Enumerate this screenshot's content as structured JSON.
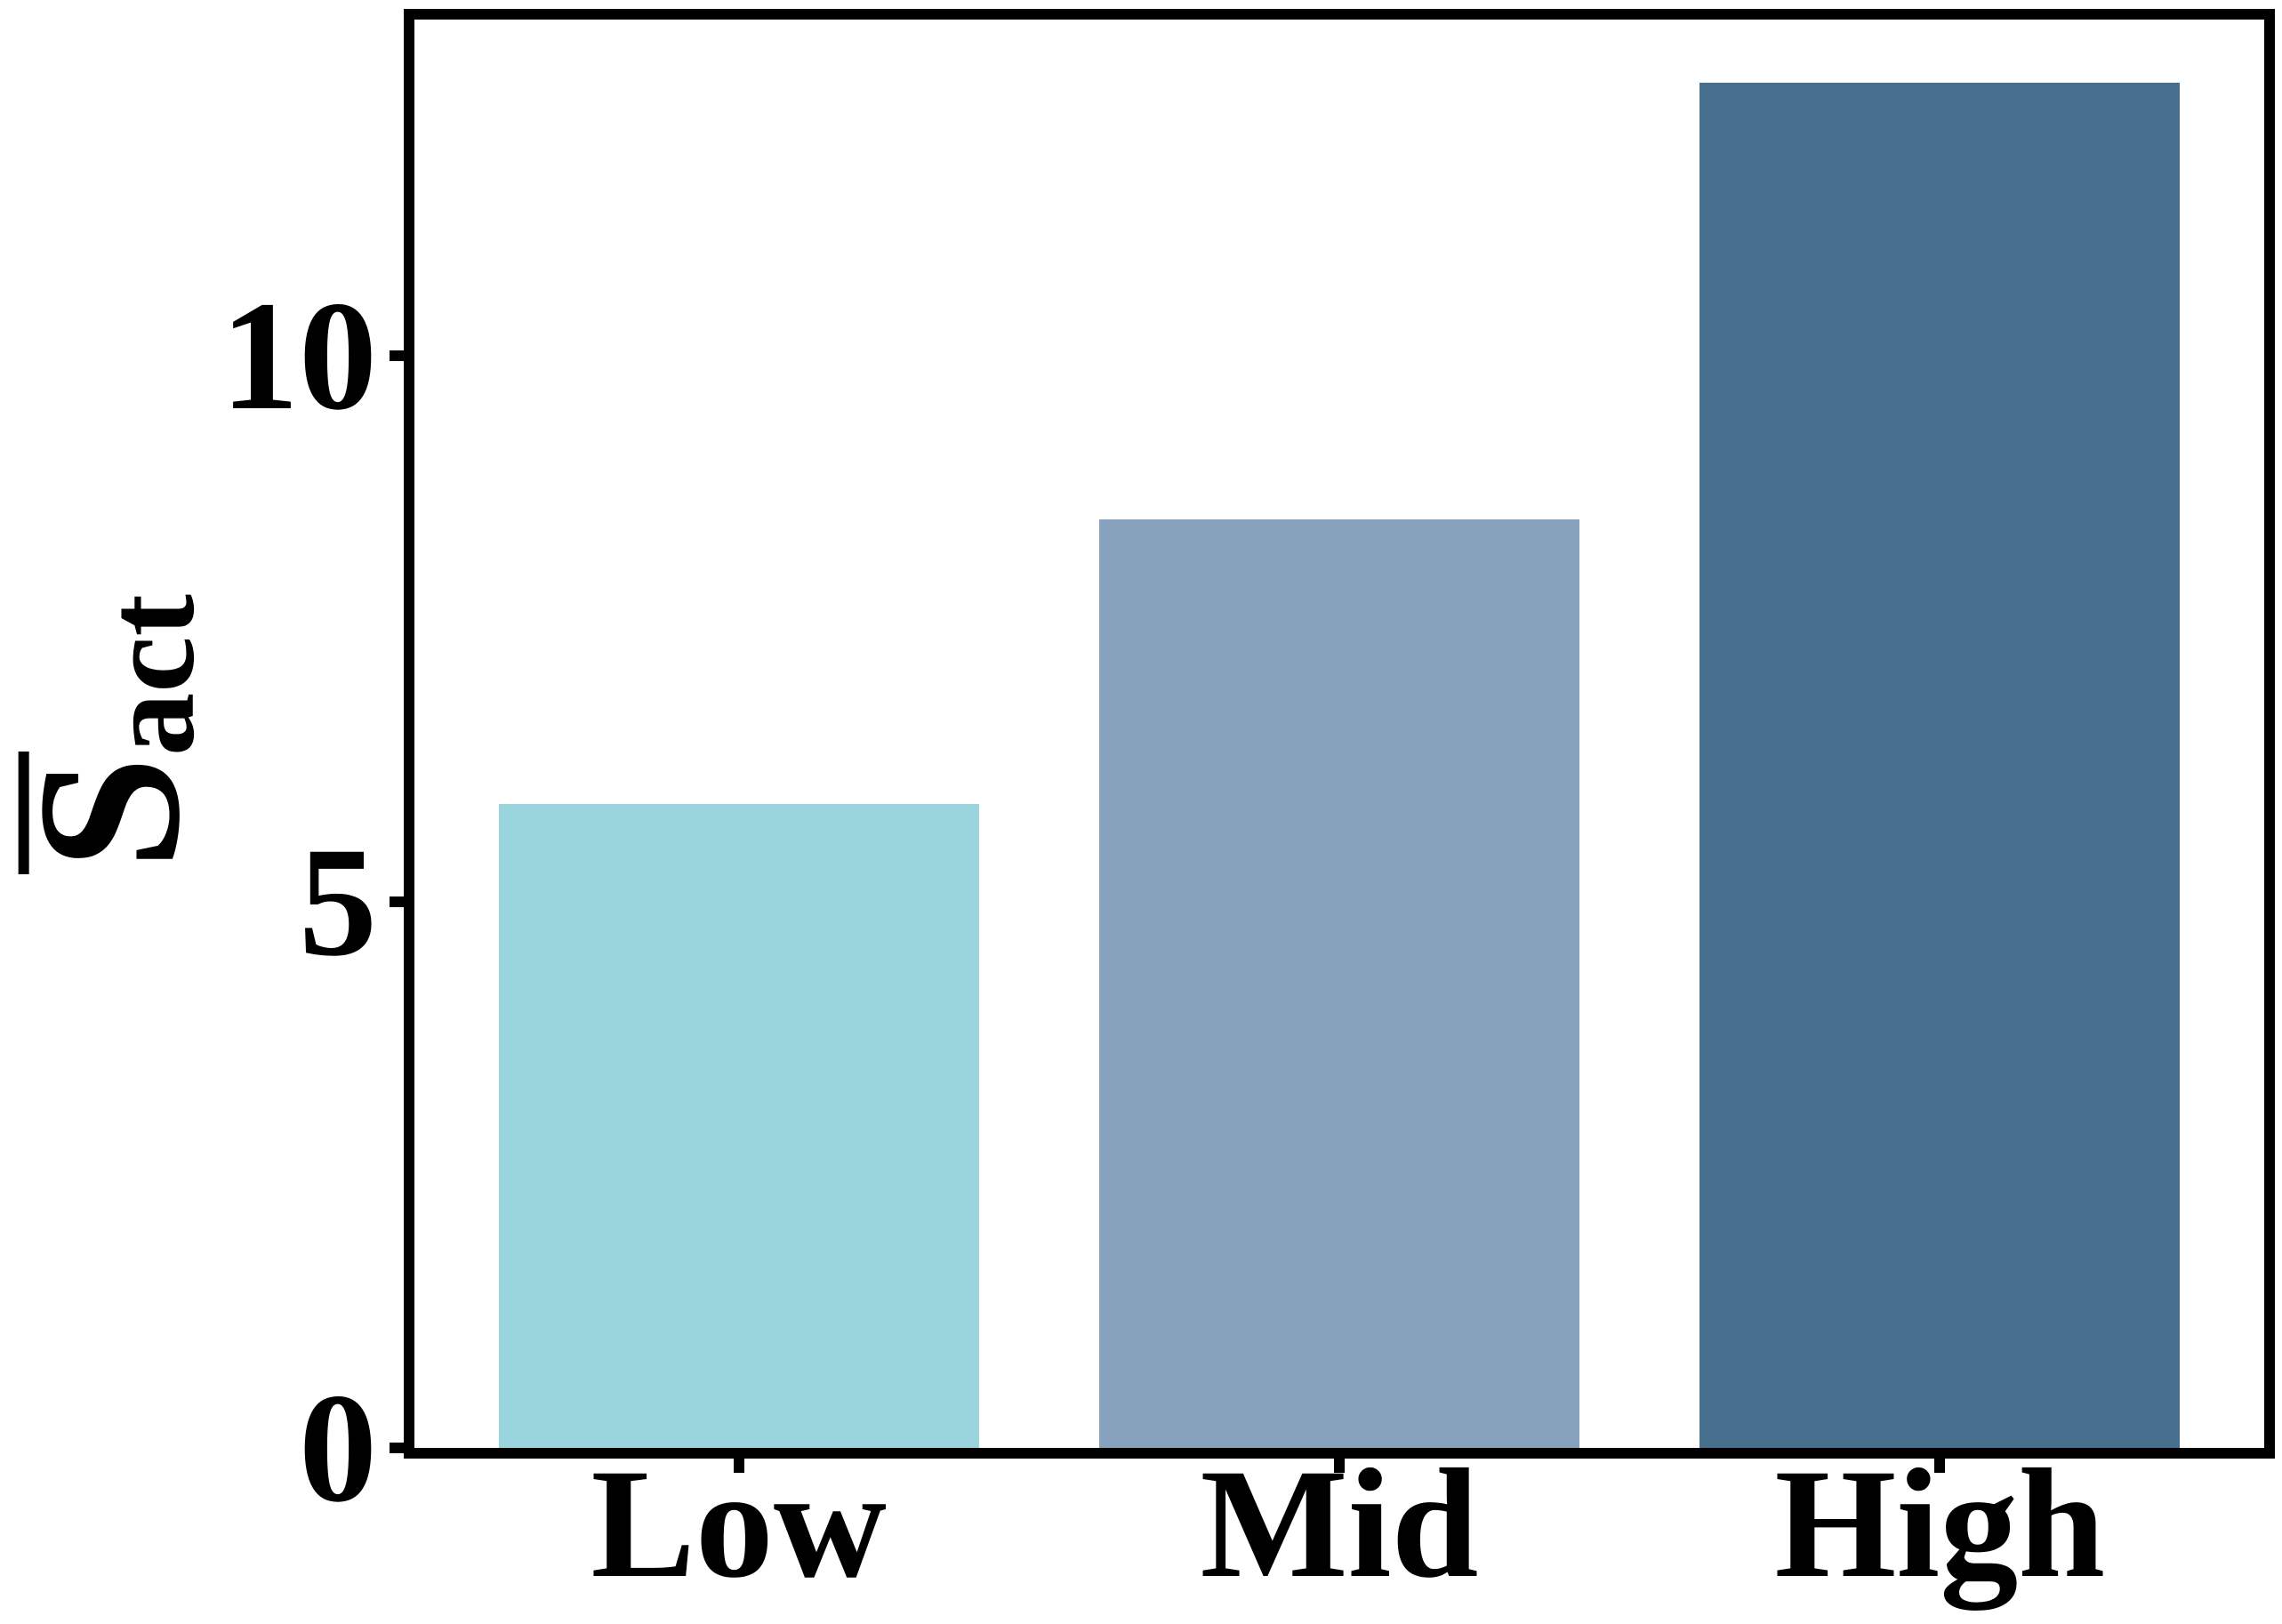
{
  "chart_data": {
    "type": "bar",
    "title": "",
    "categories": [
      "Low",
      "Mid",
      "High"
    ],
    "values": [
      5.9,
      8.5,
      12.5
    ],
    "xlabel": "",
    "ylabel": "S̅act",
    "ylabel_base": "S",
    "ylabel_subscript": "act",
    "yticks": [
      0,
      5,
      10
    ],
    "ylim": [
      0,
      13.08
    ],
    "xlim": [
      -0.54,
      2.54
    ],
    "bar_width": 0.8,
    "grid": false,
    "legend": false,
    "bar_colors": [
      "#9AD4DC",
      "#87A2BD",
      "#46708E"
    ],
    "axis_color": "#000000",
    "background": "#FFFFFF"
  }
}
